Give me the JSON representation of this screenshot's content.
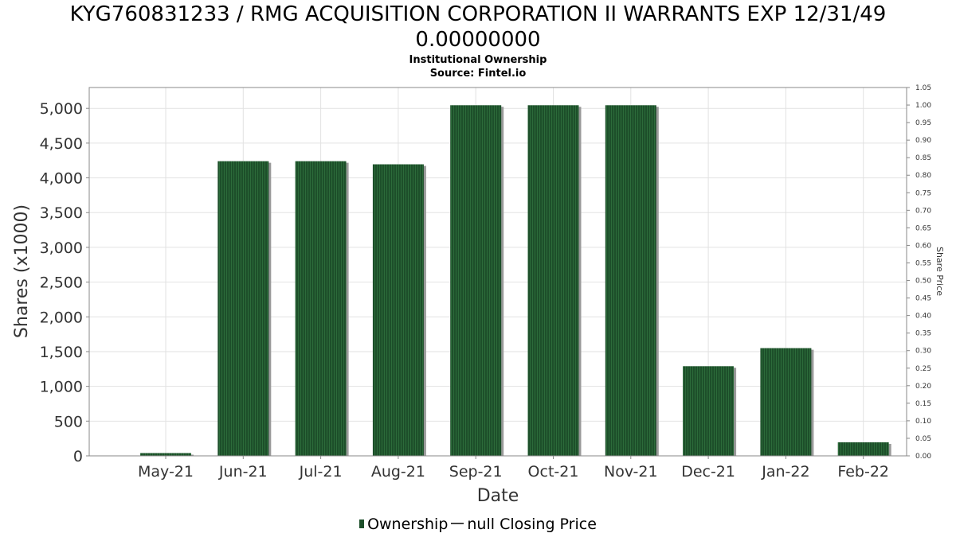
{
  "chart_data": {
    "type": "bar",
    "title": "KYG760831233 / RMG ACQUISITION CORPORATION II WARRANTS EXP 12/31/49",
    "title_line2": "0.00000000",
    "subtitle": "Institutional Ownership",
    "source": "Source: Fintel.io",
    "xlabel": "Date",
    "ylabel": "Shares (x1000)",
    "y2label": "Share Price",
    "categories": [
      "May-21",
      "Jun-21",
      "Jul-21",
      "Aug-21",
      "Sep-21",
      "Oct-21",
      "Nov-21",
      "Dec-21",
      "Jan-22",
      "Feb-22"
    ],
    "series": [
      {
        "name": "Ownership",
        "values": [
          40,
          4240,
          4240,
          4195,
          5045,
          5045,
          5045,
          1290,
          1550,
          195
        ],
        "color": "#1d4f2a"
      }
    ],
    "ylim": [
      0,
      5300
    ],
    "yticks": [
      0,
      500,
      1000,
      1500,
      2000,
      2500,
      3000,
      3500,
      4000,
      4500,
      5000
    ],
    "y2lim": [
      0,
      1.05
    ],
    "y2ticks": [
      "0.00",
      "0.05",
      "0.10",
      "0.15",
      "0.20",
      "0.25",
      "0.30",
      "0.35",
      "0.40",
      "0.45",
      "0.50",
      "0.55",
      "0.60",
      "0.65",
      "0.70",
      "0.75",
      "0.80",
      "0.85",
      "0.90",
      "0.95",
      "1.00",
      "1.05"
    ],
    "grid": true,
    "legend": {
      "placement": "bottom",
      "ownership_label": "Ownership",
      "price_label": "null Closing Price"
    }
  }
}
